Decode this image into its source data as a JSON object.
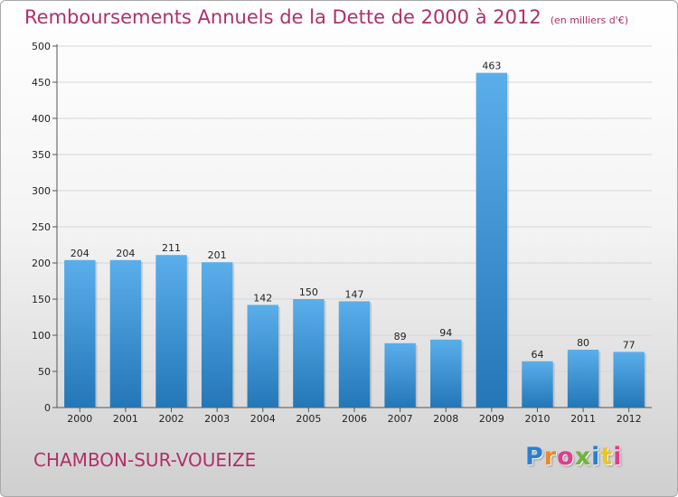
{
  "header": {
    "title": "Remboursements Annuels de la Dette de 2000 à 2012",
    "subtitle": "(en milliers d'€)"
  },
  "footer": {
    "city": "CHAMBON-SUR-VOUEIZE",
    "logo_text": "Proxiti",
    "logo_colors": [
      "#2a7fd0",
      "#e8892a",
      "#e23c8a",
      "#6fb43a",
      "#2a7fd0",
      "#e8c62a",
      "#e23c8a"
    ]
  },
  "colors": {
    "bar_top": "#5aaeea",
    "bar_bottom": "#2477b7",
    "title": "#b0306a"
  },
  "chart_data": {
    "type": "bar",
    "title": "Remboursements Annuels de la Dette de 2000 à 2012",
    "categories": [
      "2000",
      "2001",
      "2002",
      "2003",
      "2004",
      "2005",
      "2006",
      "2007",
      "2008",
      "2009",
      "2010",
      "2011",
      "2012"
    ],
    "values": [
      204,
      204,
      211,
      201,
      142,
      150,
      147,
      89,
      94,
      463,
      64,
      80,
      77
    ],
    "ylim": [
      0,
      500
    ],
    "yticks": [
      0,
      50,
      100,
      150,
      200,
      250,
      300,
      350,
      400,
      450,
      500
    ],
    "grid": true,
    "legend": "none"
  }
}
